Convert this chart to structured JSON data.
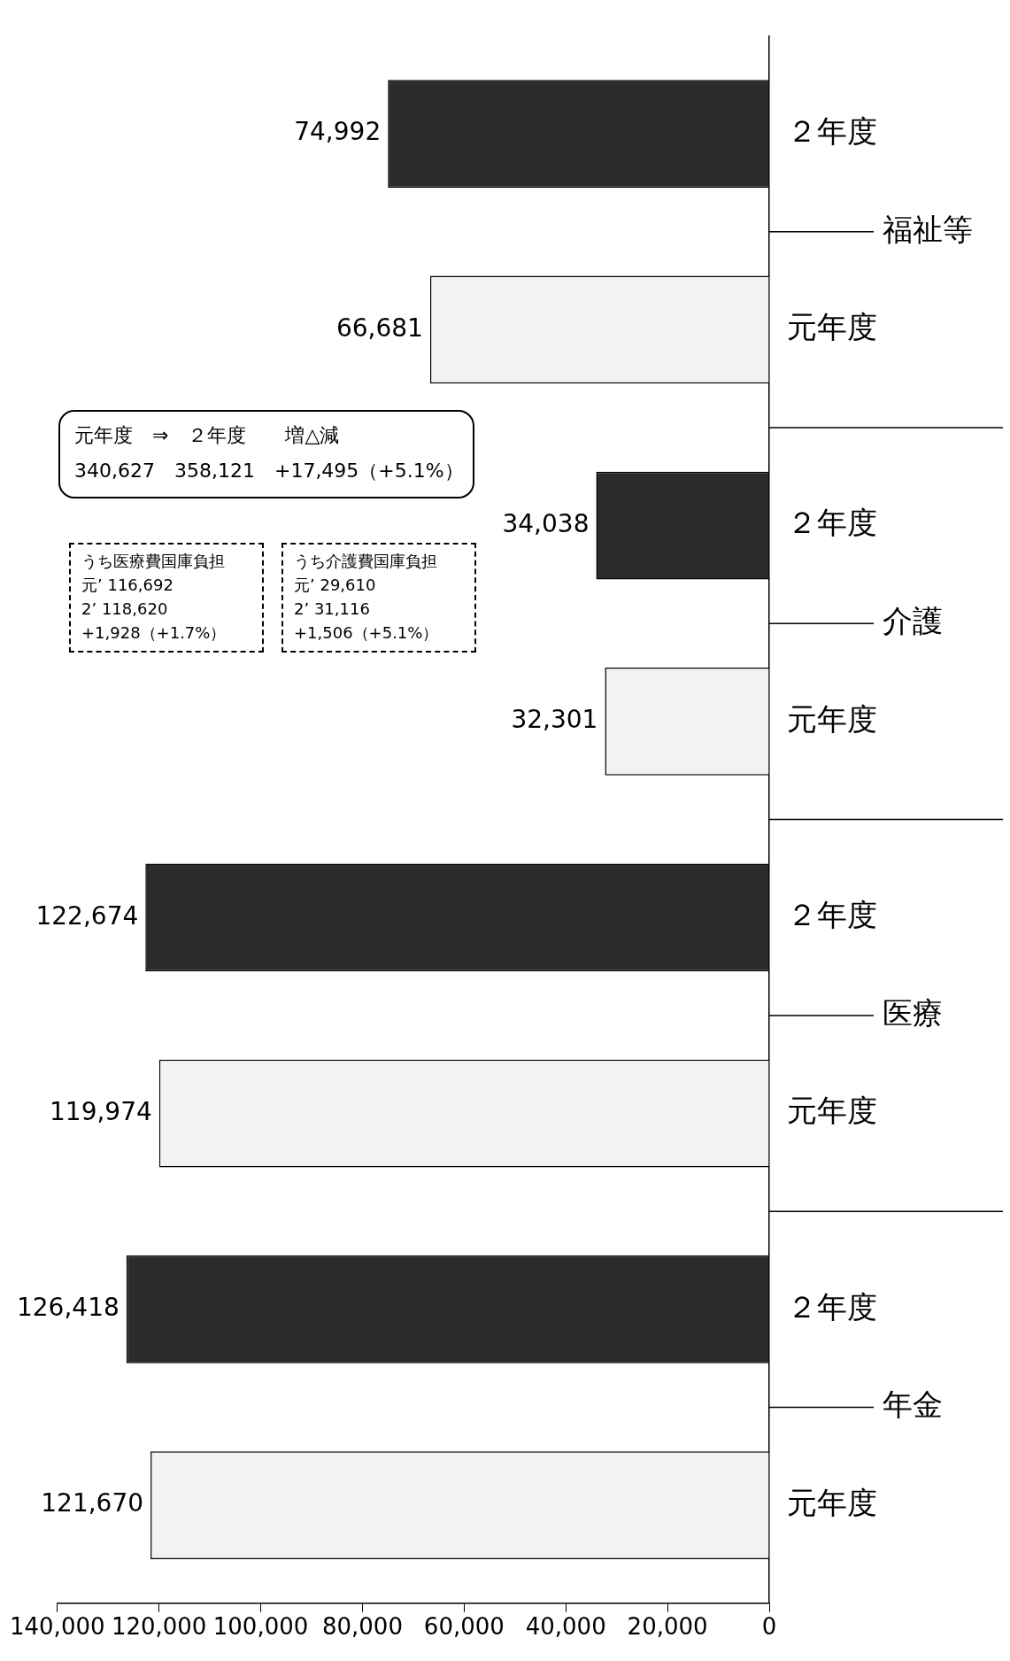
{
  "chart_data": {
    "type": "bar",
    "orientation": "horizontal",
    "categories": [
      "２年度",
      "元年度",
      "２年度",
      "元年度",
      "２年度",
      "元年度",
      "２年度",
      "元年度"
    ],
    "values": [
      74992,
      66681,
      34038,
      32301,
      122674,
      119974,
      126418,
      121670
    ],
    "colors": [
      "#2b2b2b",
      "#f2f2f2",
      "#2b2b2b",
      "#f2f2f2",
      "#2b2b2b",
      "#f2f2f2",
      "#2b2b2b",
      "#f2f2f2"
    ],
    "value_labels": [
      "74,992",
      "66,681",
      "34,038",
      "32,301",
      "122,674",
      "119,974",
      "126,418",
      "121,670"
    ],
    "xlim": [
      140000,
      0
    ],
    "xticks": [
      {
        "value": 140000,
        "label": "140,000"
      },
      {
        "value": 120000,
        "label": "120,000"
      },
      {
        "value": 100000,
        "label": "100,000"
      },
      {
        "value": 80000,
        "label": "80,000"
      },
      {
        "value": 60000,
        "label": "60,000"
      },
      {
        "value": 40000,
        "label": "40,000"
      },
      {
        "value": 20000,
        "label": "20,000"
      },
      0
    ],
    "grid": false,
    "legend": false,
    "annotations": [
      "元年度　⇒　２年度　　増△減",
      "340,627　358,121　+17,495（+5.1%）",
      "うち医療費国庫負担",
      "元’ 116,692",
      "2’ 118,620",
      "+1,928（+1.7%）",
      "うち介護費国庫負担",
      "元’ 29,610",
      "2’ 31,116",
      "+1,506（+5.1%）",
      "福祉等",
      "介護",
      "医療",
      "年金"
    ]
  }
}
